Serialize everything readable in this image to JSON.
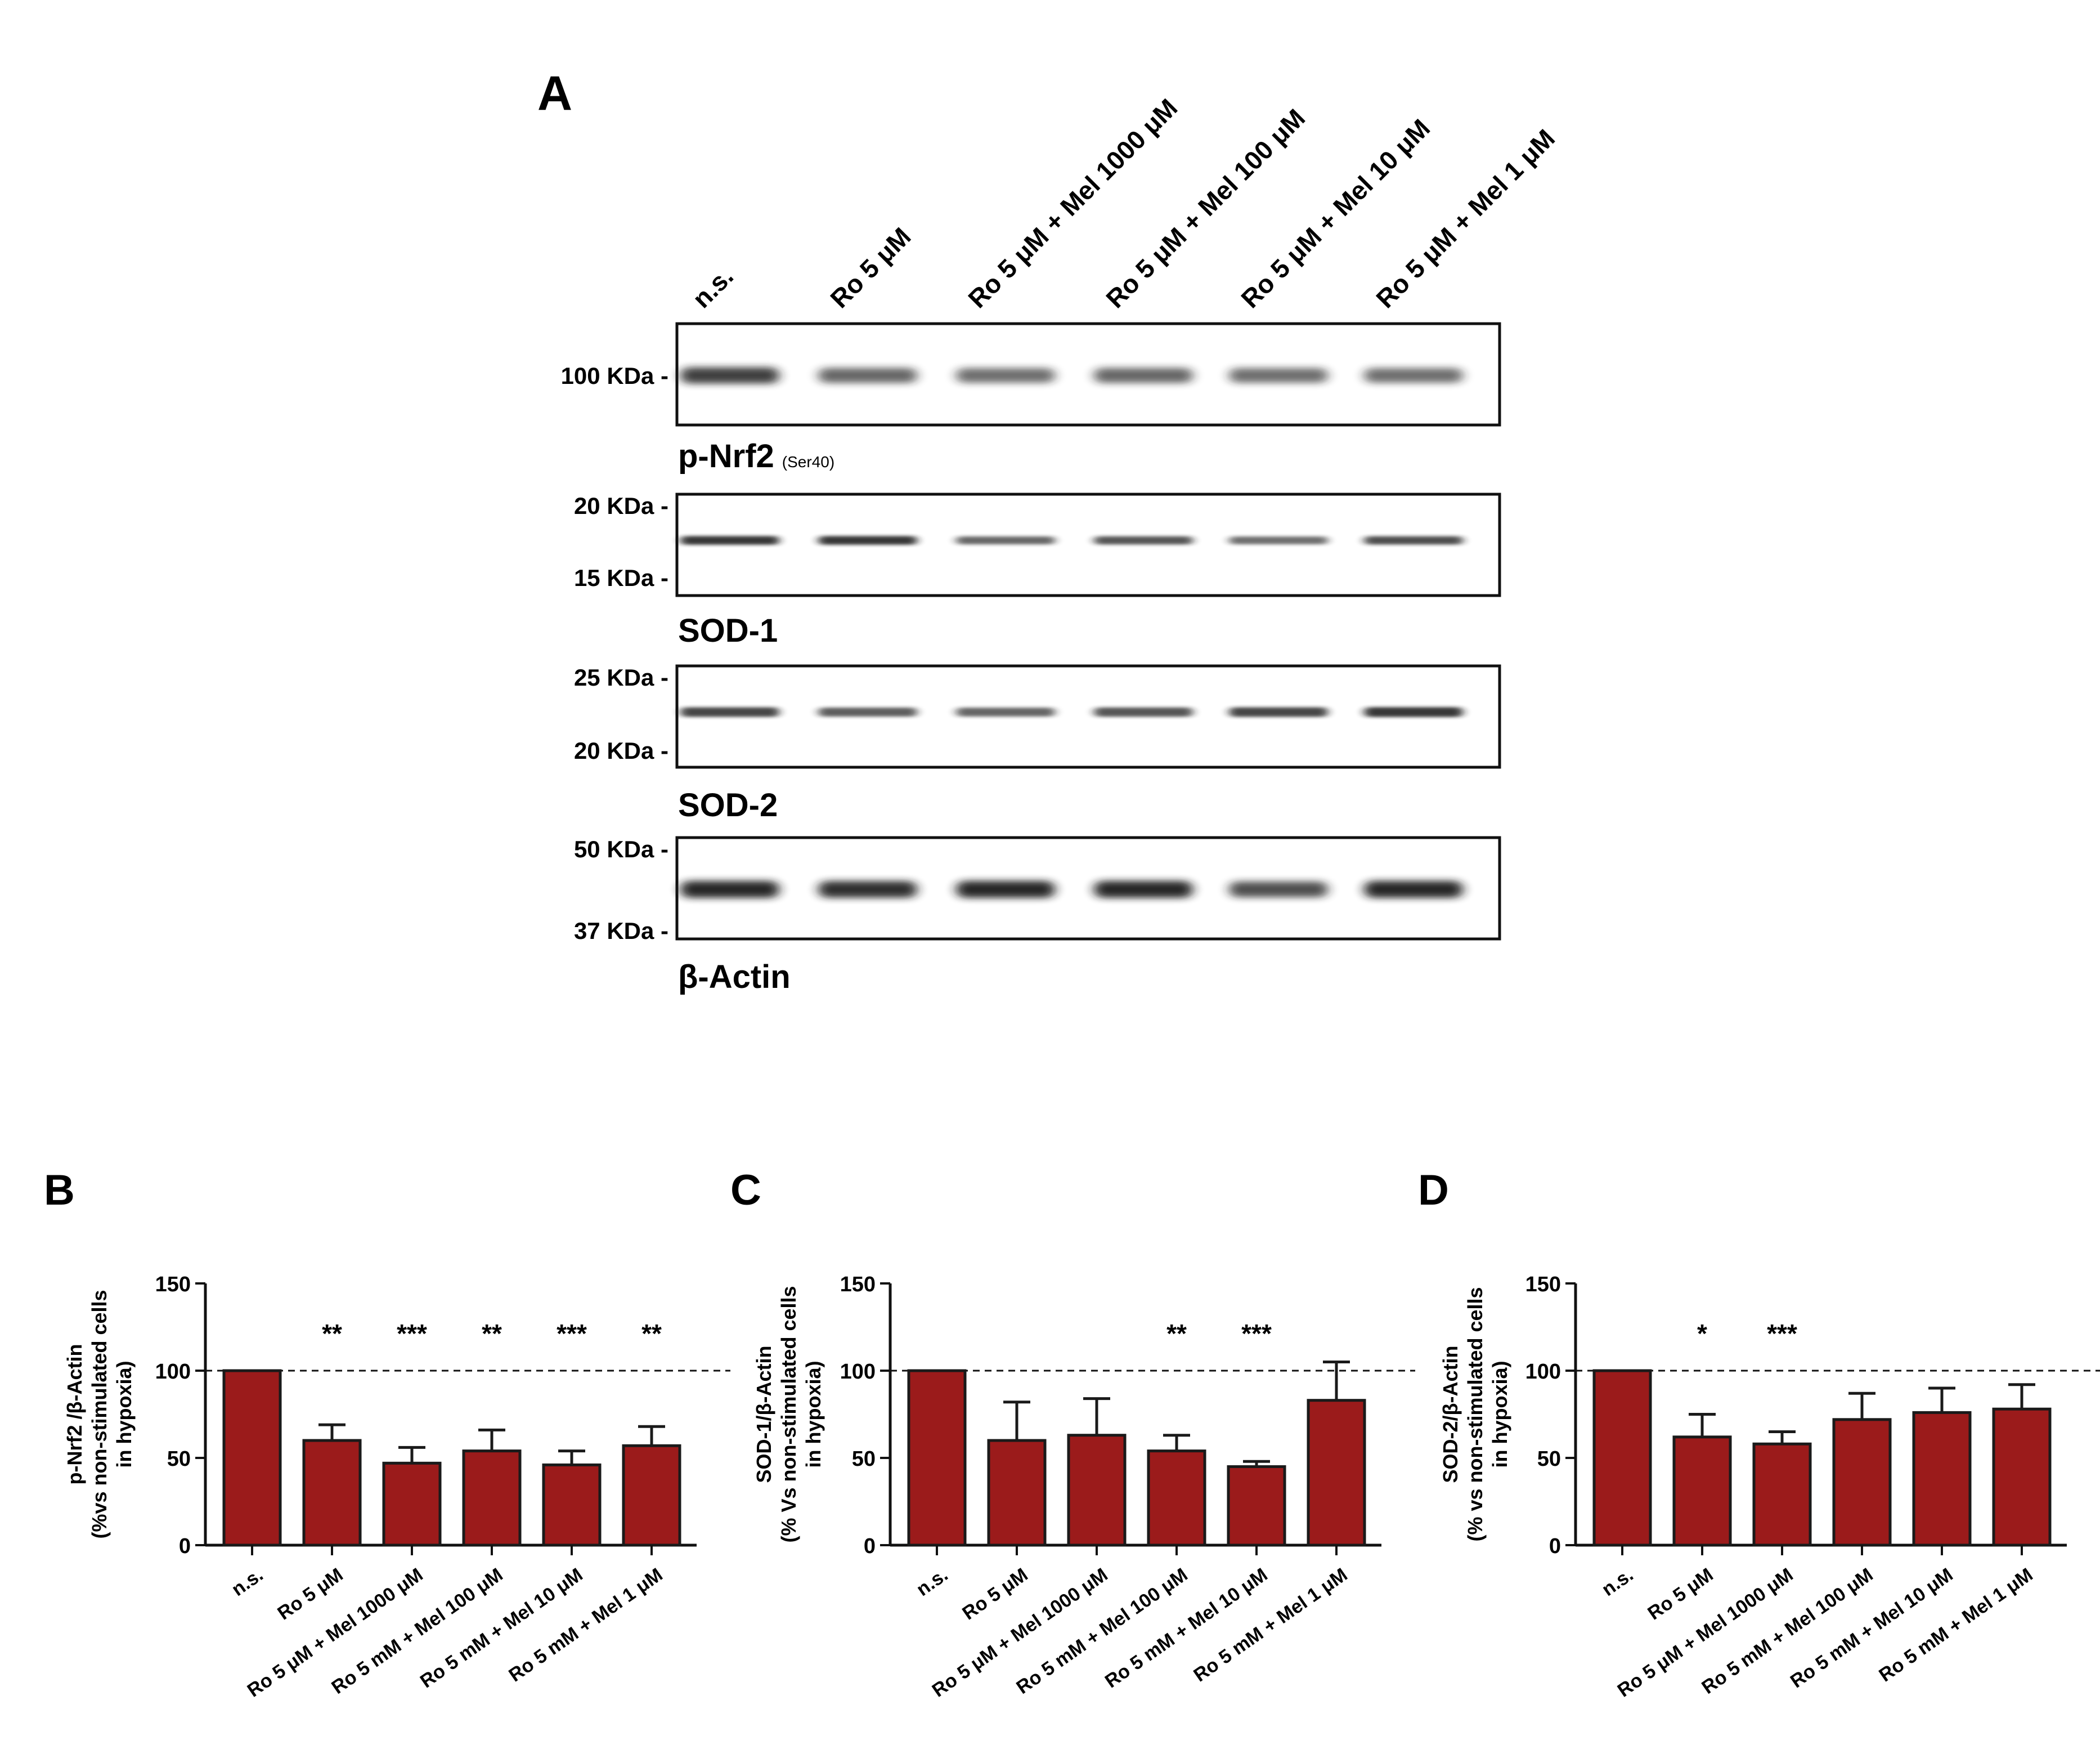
{
  "panel_labels": {
    "a": "A",
    "b": "B",
    "c": "C",
    "d": "D"
  },
  "lanes": [
    "n.s.",
    "Ro 5 μM",
    "Ro 5 μM + Mel 1000 μM",
    "Ro 5 μM + Mel 100 μM",
    "Ro 5 μM + Mel 10 μM",
    "Ro 5 μM + Mel 1 μM"
  ],
  "blots": [
    {
      "name": "p-Nrf2",
      "subscript": "(Ser40)",
      "markers": [
        "100 KDa -"
      ],
      "intensity": [
        0.85,
        0.6,
        0.55,
        0.6,
        0.55,
        0.55
      ],
      "band_style": "diffuse"
    },
    {
      "name": "SOD-1",
      "subscript": "",
      "markers": [
        "20 KDa -",
        "15 KDa -"
      ],
      "intensity": [
        0.9,
        0.9,
        0.6,
        0.7,
        0.55,
        0.75
      ],
      "band_style": "thin"
    },
    {
      "name": "SOD-2",
      "subscript": "",
      "markers": [
        "25 KDa -",
        "20 KDa -"
      ],
      "intensity": [
        0.8,
        0.65,
        0.6,
        0.7,
        0.8,
        0.9
      ],
      "band_style": "thin"
    },
    {
      "name": "β-Actin",
      "subscript": "",
      "markers": [
        "50 KDa -",
        "37 KDa -"
      ],
      "intensity": [
        1.0,
        0.95,
        1.0,
        1.0,
        0.75,
        1.0
      ],
      "band_style": "thick"
    }
  ],
  "colors": {
    "bar_fill": "#9b1b1b",
    "bar_stroke": "#1a1a1a",
    "band": "#1e1e1e"
  },
  "chart_data": [
    {
      "panel": "B",
      "type": "bar",
      "categories": [
        "n.s.",
        "Ro 5 μM",
        "Ro 5 μM + Mel 1000 μM",
        "Ro 5 mM + Mel 100 μM",
        "Ro 5 mM + Mel 10 μM",
        "Ro 5 mM + Mel 1 μM"
      ],
      "values": [
        100,
        60,
        47,
        54,
        46,
        57
      ],
      "errors": [
        0,
        9,
        9,
        12,
        8,
        11
      ],
      "significance": [
        "",
        "**",
        "***",
        "**",
        "***",
        "**"
      ],
      "ylabel_lines": [
        "p-Nrf2 /β-Actin",
        "(%vs non-stimulated cells",
        "in hypoxia)"
      ],
      "yticks": [
        "0",
        "50",
        "100",
        "150"
      ],
      "ylim": [
        0,
        150
      ],
      "reference_line": 100
    },
    {
      "panel": "C",
      "type": "bar",
      "categories": [
        "n.s.",
        "Ro 5 μM",
        "Ro 5 μM + Mel 1000 μM",
        "Ro 5 mM + Mel 100 μM",
        "Ro 5 mM + Mel 10 μM",
        "Ro 5 mM + Mel 1 μM"
      ],
      "values": [
        100,
        60,
        63,
        54,
        45,
        83
      ],
      "errors": [
        0,
        22,
        21,
        9,
        3,
        22
      ],
      "significance": [
        "",
        "",
        "",
        "**",
        "***",
        ""
      ],
      "ylabel_lines": [
        "SOD-1/β-Actin",
        "(% Vs non-stimulated cells",
        "in hypoxia)"
      ],
      "yticks": [
        "0",
        "50",
        "100",
        "150"
      ],
      "ylim": [
        0,
        150
      ],
      "reference_line": 100
    },
    {
      "panel": "D",
      "type": "bar",
      "categories": [
        "n.s.",
        "Ro 5 μM",
        "Ro 5 μM + Mel 1000 μM",
        "Ro 5 mM + Mel 100 μM",
        "Ro 5 mM + Mel 10 μM",
        "Ro 5 mM + Mel 1 μM"
      ],
      "values": [
        100,
        62,
        58,
        72,
        76,
        78
      ],
      "errors": [
        0,
        13,
        7,
        15,
        14,
        14
      ],
      "significance": [
        "",
        "*",
        "***",
        "",
        "",
        ""
      ],
      "ylabel_lines": [
        "SOD-2/β-Actin",
        "(% vs non-stimulated cells",
        "in hypoxia)"
      ],
      "yticks": [
        "0",
        "50",
        "100",
        "150"
      ],
      "ylim": [
        0,
        150
      ],
      "reference_line": 100
    }
  ]
}
